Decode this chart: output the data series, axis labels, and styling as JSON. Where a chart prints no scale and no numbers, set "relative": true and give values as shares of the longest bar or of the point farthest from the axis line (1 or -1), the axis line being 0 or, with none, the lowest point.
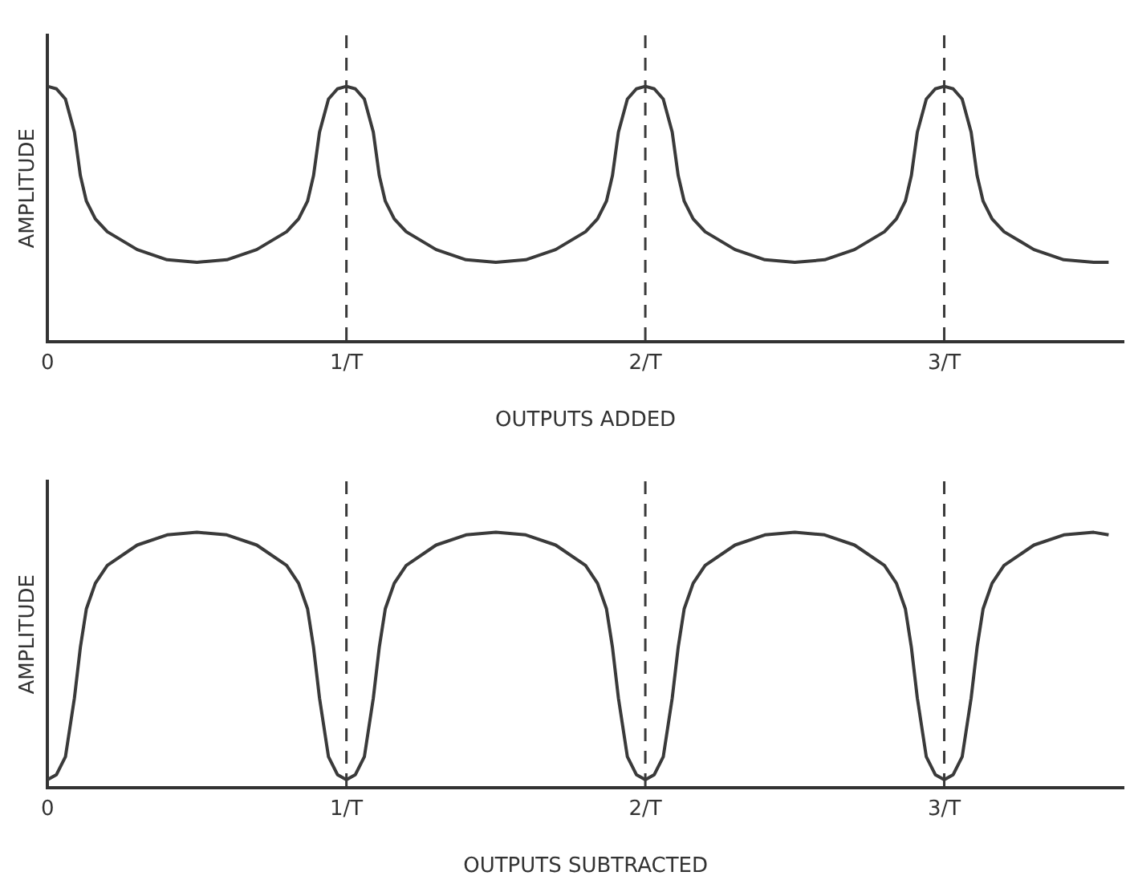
{
  "chart_data": [
    {
      "type": "line",
      "ylabel": "AMPLITUDE",
      "xlabel": "OUTPUTS ADDED",
      "relative": true,
      "color": "#3a3a3a",
      "tick_labels": "x",
      "xlim": [
        0,
        3.6
      ],
      "xticks": [
        0,
        {
          "value": 1,
          "label": "1/T"
        },
        {
          "value": 2,
          "label": "2/T"
        },
        {
          "value": 3,
          "label": "3/T"
        }
      ],
      "ref_lines": [
        {
          "axis": "x",
          "value": 1,
          "line_style": "dashed",
          "color": "#3a3a3a"
        },
        {
          "axis": "x",
          "value": 2,
          "line_style": "dashed",
          "color": "#3a3a3a"
        },
        {
          "axis": "x",
          "value": 3,
          "line_style": "dashed",
          "color": "#3a3a3a"
        }
      ],
      "x": [
        0,
        0.03,
        0.06,
        0.09,
        0.11,
        0.13,
        0.16,
        0.2,
        0.3,
        0.4,
        0.5,
        0.6,
        0.7,
        0.8,
        0.84,
        0.87,
        0.89,
        0.91,
        0.94,
        0.97,
        1,
        1.03,
        1.06,
        1.09,
        1.11,
        1.13,
        1.16,
        1.2,
        1.3,
        1.4,
        1.5,
        1.6,
        1.7,
        1.8,
        1.84,
        1.87,
        1.89,
        1.91,
        1.94,
        1.97,
        2,
        2.03,
        2.06,
        2.09,
        2.11,
        2.13,
        2.16,
        2.2,
        2.3,
        2.4,
        2.5,
        2.6,
        2.7,
        2.8,
        2.84,
        2.87,
        2.89,
        2.91,
        2.94,
        2.97,
        3,
        3.03,
        3.06,
        3.09,
        3.11,
        3.13,
        3.16,
        3.2,
        3.3,
        3.4,
        3.5,
        3.55
      ],
      "values": [
        1,
        0.99,
        0.95,
        0.82,
        0.65,
        0.55,
        0.48,
        0.43,
        0.36,
        0.32,
        0.31,
        0.32,
        0.36,
        0.43,
        0.48,
        0.55,
        0.65,
        0.82,
        0.95,
        0.99,
        1,
        0.99,
        0.95,
        0.82,
        0.65,
        0.55,
        0.48,
        0.43,
        0.36,
        0.32,
        0.31,
        0.32,
        0.36,
        0.43,
        0.48,
        0.55,
        0.65,
        0.82,
        0.95,
        0.99,
        1,
        0.99,
        0.95,
        0.82,
        0.65,
        0.55,
        0.48,
        0.43,
        0.36,
        0.32,
        0.31,
        0.32,
        0.36,
        0.43,
        0.48,
        0.55,
        0.65,
        0.82,
        0.95,
        0.99,
        1,
        0.99,
        0.95,
        0.82,
        0.65,
        0.55,
        0.48,
        0.43,
        0.36,
        0.32,
        0.31,
        0.31
      ]
    },
    {
      "type": "line",
      "ylabel": "AMPLITUDE",
      "xlabel": "OUTPUTS SUBTRACTED",
      "relative": true,
      "color": "#3a3a3a",
      "tick_labels": "x",
      "xlim": [
        0,
        3.6
      ],
      "xticks": [
        0,
        {
          "value": 1,
          "label": "1/T"
        },
        {
          "value": 2,
          "label": "2/T"
        },
        {
          "value": 3,
          "label": "3/T"
        }
      ],
      "ref_lines": [
        {
          "axis": "x",
          "value": 1,
          "line_style": "dashed",
          "color": "#3a3a3a"
        },
        {
          "axis": "x",
          "value": 2,
          "line_style": "dashed",
          "color": "#3a3a3a"
        },
        {
          "axis": "x",
          "value": 3,
          "line_style": "dashed",
          "color": "#3a3a3a"
        }
      ],
      "x": [
        0,
        0.03,
        0.06,
        0.09,
        0.11,
        0.13,
        0.16,
        0.2,
        0.3,
        0.4,
        0.5,
        0.6,
        0.7,
        0.8,
        0.84,
        0.87,
        0.89,
        0.91,
        0.94,
        0.97,
        1,
        1.03,
        1.06,
        1.09,
        1.11,
        1.13,
        1.16,
        1.2,
        1.3,
        1.4,
        1.5,
        1.6,
        1.7,
        1.8,
        1.84,
        1.87,
        1.89,
        1.91,
        1.94,
        1.97,
        2,
        2.03,
        2.06,
        2.09,
        2.11,
        2.13,
        2.16,
        2.2,
        2.3,
        2.4,
        2.5,
        2.6,
        2.7,
        2.8,
        2.84,
        2.87,
        2.89,
        2.91,
        2.94,
        2.97,
        3,
        3.03,
        3.06,
        3.09,
        3.11,
        3.13,
        3.16,
        3.2,
        3.3,
        3.4,
        3.5,
        3.55
      ],
      "values": [
        0.03,
        0.05,
        0.12,
        0.35,
        0.55,
        0.7,
        0.8,
        0.87,
        0.95,
        0.99,
        1,
        0.99,
        0.95,
        0.87,
        0.8,
        0.7,
        0.55,
        0.35,
        0.12,
        0.05,
        0.03,
        0.05,
        0.12,
        0.35,
        0.55,
        0.7,
        0.8,
        0.87,
        0.95,
        0.99,
        1,
        0.99,
        0.95,
        0.87,
        0.8,
        0.7,
        0.55,
        0.35,
        0.12,
        0.05,
        0.03,
        0.05,
        0.12,
        0.35,
        0.55,
        0.7,
        0.8,
        0.87,
        0.95,
        0.99,
        1,
        0.99,
        0.95,
        0.87,
        0.8,
        0.7,
        0.55,
        0.35,
        0.12,
        0.05,
        0.03,
        0.05,
        0.12,
        0.35,
        0.55,
        0.7,
        0.8,
        0.87,
        0.95,
        0.99,
        1,
        0.99
      ]
    }
  ]
}
